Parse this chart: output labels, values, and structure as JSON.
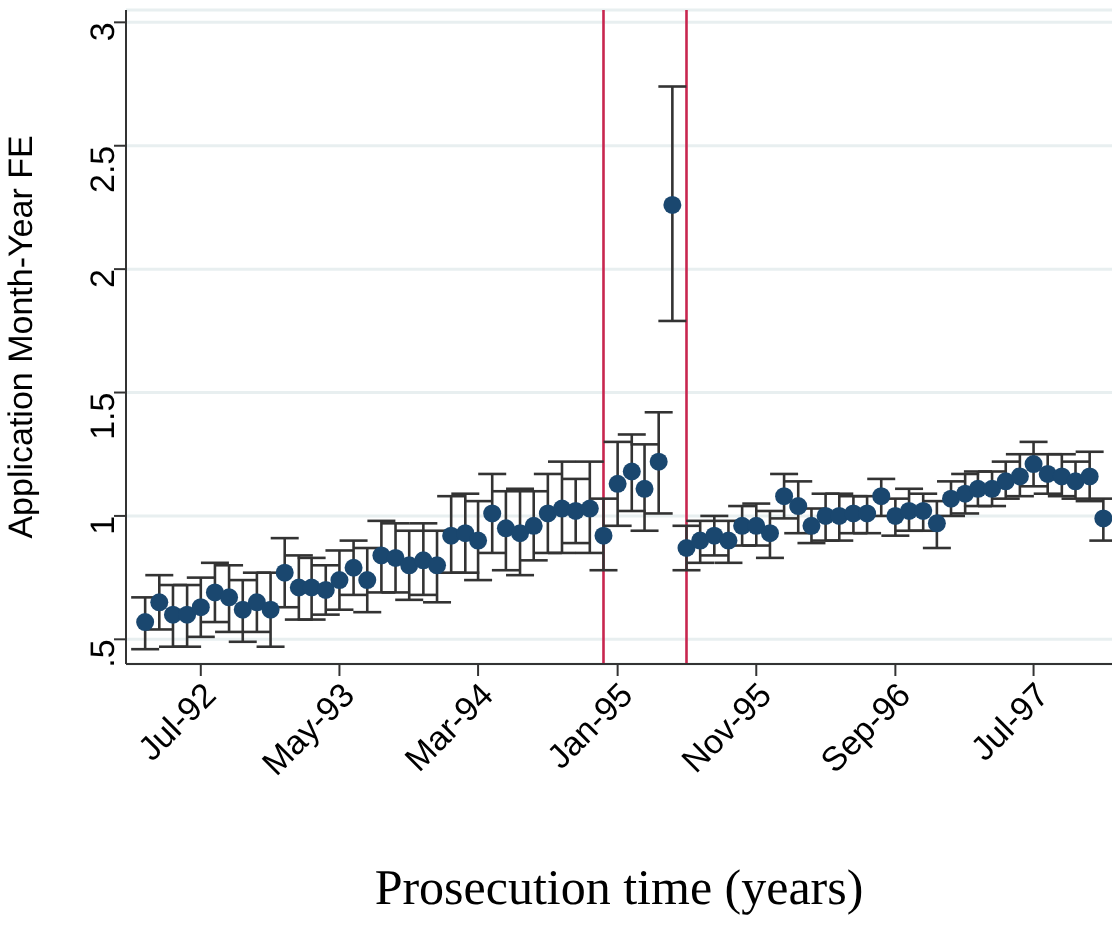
{
  "chart_data": {
    "type": "scatter",
    "xlabel": "Prosecution time (years)",
    "ylabel": "Application Month-Year FE",
    "x": [
      "1992-03",
      "1992-04",
      "1992-05",
      "1992-06",
      "1992-07",
      "1992-08",
      "1992-09",
      "1992-10",
      "1992-11",
      "1992-12",
      "1993-01",
      "1993-02",
      "1993-03",
      "1993-04",
      "1993-05",
      "1993-06",
      "1993-07",
      "1993-08",
      "1993-09",
      "1993-10",
      "1993-11",
      "1993-12",
      "1994-01",
      "1994-02",
      "1994-03",
      "1994-04",
      "1994-05",
      "1994-06",
      "1994-07",
      "1994-08",
      "1994-09",
      "1994-10",
      "1994-11",
      "1994-12",
      "1995-01",
      "1995-02",
      "1995-03",
      "1995-04",
      "1995-05",
      "1995-06",
      "1995-07",
      "1995-08",
      "1995-09",
      "1995-10",
      "1995-11",
      "1995-12",
      "1996-01",
      "1996-02",
      "1996-03",
      "1996-04",
      "1996-05",
      "1996-06",
      "1996-07",
      "1996-08",
      "1996-09",
      "1996-10",
      "1996-11",
      "1996-12",
      "1997-01",
      "1997-02",
      "1997-03",
      "1997-04",
      "1997-05",
      "1997-06",
      "1997-07",
      "1997-08",
      "1997-09",
      "1997-10",
      "1997-11",
      "1997-12"
    ],
    "series": [
      {
        "color": "#1a476f",
        "values": [
          0.57,
          0.65,
          0.6,
          0.6,
          0.63,
          0.69,
          0.67,
          0.62,
          0.65,
          0.62,
          0.77,
          0.71,
          0.71,
          0.7,
          0.74,
          0.79,
          0.74,
          0.84,
          0.83,
          0.8,
          0.82,
          0.8,
          0.92,
          0.93,
          0.9,
          1.01,
          0.95,
          0.93,
          0.96,
          1.01,
          1.03,
          1.02,
          1.03,
          0.92,
          1.13,
          1.18,
          1.11,
          1.22,
          2.26,
          0.87,
          0.9,
          0.92,
          0.9,
          0.96,
          0.96,
          0.93,
          1.08,
          1.04,
          0.96,
          1.0,
          1.0,
          1.01,
          1.01,
          1.08,
          1.0,
          1.02,
          1.02,
          0.97,
          1.07,
          1.09,
          1.11,
          1.11,
          1.14,
          1.16,
          1.21,
          1.17,
          1.16,
          1.14,
          1.16,
          0.99
        ],
        "errors": [
          [
            0.46,
            0.67
          ],
          [
            0.54,
            0.76
          ],
          [
            0.47,
            0.72
          ],
          [
            0.47,
            0.72
          ],
          [
            0.51,
            0.75
          ],
          [
            0.57,
            0.81
          ],
          [
            0.53,
            0.8
          ],
          [
            0.49,
            0.74
          ],
          [
            0.53,
            0.77
          ],
          [
            0.47,
            0.77
          ],
          [
            0.63,
            0.91
          ],
          [
            0.58,
            0.84
          ],
          [
            0.58,
            0.83
          ],
          [
            0.6,
            0.8
          ],
          [
            0.62,
            0.86
          ],
          [
            0.68,
            0.9
          ],
          [
            0.61,
            0.87
          ],
          [
            0.69,
            0.98
          ],
          [
            0.69,
            0.97
          ],
          [
            0.66,
            0.94
          ],
          [
            0.68,
            0.97
          ],
          [
            0.65,
            0.94
          ],
          [
            0.77,
            1.08
          ],
          [
            0.77,
            1.09
          ],
          [
            0.74,
            1.06
          ],
          [
            0.85,
            1.17
          ],
          [
            0.78,
            1.1
          ],
          [
            0.76,
            1.11
          ],
          [
            0.82,
            1.1
          ],
          [
            0.85,
            1.17
          ],
          [
            0.85,
            1.22
          ],
          [
            0.89,
            1.15
          ],
          [
            0.85,
            1.22
          ],
          [
            0.78,
            1.07
          ],
          [
            0.96,
            1.3
          ],
          [
            1.02,
            1.33
          ],
          [
            0.94,
            1.29
          ],
          [
            1.01,
            1.42
          ],
          [
            1.79,
            2.74
          ],
          [
            0.78,
            0.96
          ],
          [
            0.81,
            0.98
          ],
          [
            0.84,
            1.0
          ],
          [
            0.81,
            0.98
          ],
          [
            0.88,
            1.04
          ],
          [
            0.88,
            1.05
          ],
          [
            0.83,
            1.02
          ],
          [
            0.99,
            1.17
          ],
          [
            0.93,
            1.14
          ],
          [
            0.89,
            1.03
          ],
          [
            0.9,
            1.09
          ],
          [
            0.9,
            1.09
          ],
          [
            0.93,
            1.08
          ],
          [
            0.93,
            1.08
          ],
          [
            1.0,
            1.15
          ],
          [
            0.92,
            1.07
          ],
          [
            0.94,
            1.11
          ],
          [
            0.94,
            1.09
          ],
          [
            0.87,
            1.06
          ],
          [
            1.0,
            1.14
          ],
          [
            1.01,
            1.17
          ],
          [
            1.04,
            1.18
          ],
          [
            1.04,
            1.18
          ],
          [
            1.07,
            1.22
          ],
          [
            1.08,
            1.25
          ],
          [
            1.12,
            1.3
          ],
          [
            1.09,
            1.25
          ],
          [
            1.08,
            1.25
          ],
          [
            1.07,
            1.22
          ],
          [
            1.06,
            1.26
          ],
          [
            0.9,
            1.07
          ]
        ]
      }
    ],
    "xlim": [
      "1992-01-19",
      "1997-12-20"
    ],
    "xticks": [
      {
        "value": "1992-07",
        "label": "Jul-92"
      },
      {
        "value": "1993-05",
        "label": "May-93"
      },
      {
        "value": "1994-03",
        "label": "Mar-94"
      },
      {
        "value": "1995-01",
        "label": "Jan-95"
      },
      {
        "value": "1995-11",
        "label": "Nov-95"
      },
      {
        "value": "1996-09",
        "label": "Sep-96"
      },
      {
        "value": "1997-07",
        "label": "Jul-97"
      }
    ],
    "ylim": [
      0.4,
      3.05
    ],
    "yticks": [
      {
        "value": 0.5,
        "label": ".5"
      },
      1,
      1.5,
      2,
      2.5,
      3
    ],
    "ref_lines": [
      {
        "axis": "x",
        "value": "1994-12",
        "color": "#c8264f"
      },
      {
        "axis": "x",
        "value": "1995-06",
        "color": "#c8264f"
      }
    ],
    "grid": "y",
    "marker": "circle"
  }
}
